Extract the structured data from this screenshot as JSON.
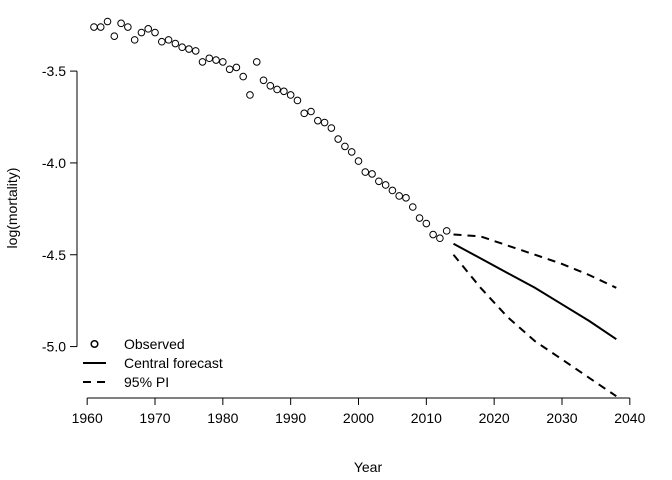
{
  "chart_data": {
    "type": "line",
    "xlabel": "Year",
    "ylabel": "log(mortality)",
    "xlim": [
      1958.5,
      2041.5
    ],
    "ylim": [
      -5.28,
      -3.2
    ],
    "xticks": [
      "1960",
      "1970",
      "1980",
      "1990",
      "2000",
      "2010",
      "2020",
      "2030",
      "2040"
    ],
    "yticks": [
      "-3.5",
      "-4.0",
      "-4.5",
      "-5.0"
    ],
    "legend_position": "bottom-left",
    "grid": false,
    "series": [
      {
        "name": "Observed",
        "style": "points",
        "x": [
          1961,
          1962,
          1963,
          1964,
          1965,
          1966,
          1967,
          1968,
          1969,
          1970,
          1971,
          1972,
          1973,
          1974,
          1975,
          1976,
          1977,
          1978,
          1979,
          1980,
          1981,
          1982,
          1983,
          1984,
          1985,
          1986,
          1987,
          1988,
          1989,
          1990,
          1991,
          1992,
          1993,
          1994,
          1995,
          1996,
          1997,
          1998,
          1999,
          2000,
          2001,
          2002,
          2003,
          2004,
          2005,
          2006,
          2007,
          2008,
          2009,
          2010,
          2011,
          2012,
          2013
        ],
        "y": [
          -3.26,
          -3.26,
          -3.23,
          -3.31,
          -3.24,
          -3.26,
          -3.33,
          -3.29,
          -3.27,
          -3.29,
          -3.34,
          -3.33,
          -3.35,
          -3.37,
          -3.38,
          -3.39,
          -3.45,
          -3.43,
          -3.44,
          -3.45,
          -3.49,
          -3.48,
          -3.53,
          -3.63,
          -3.45,
          -3.55,
          -3.58,
          -3.6,
          -3.61,
          -3.63,
          -3.66,
          -3.73,
          -3.72,
          -3.77,
          -3.78,
          -3.81,
          -3.87,
          -3.91,
          -3.94,
          -3.99,
          -4.05,
          -4.06,
          -4.1,
          -4.12,
          -4.15,
          -4.18,
          -4.19,
          -4.24,
          -4.3,
          -4.33,
          -4.39,
          -4.41,
          -4.37
        ]
      },
      {
        "name": "Central forecast",
        "style": "solid",
        "x": [
          2014,
          2018,
          2022,
          2026,
          2030,
          2034,
          2038
        ],
        "y": [
          -4.44,
          -4.52,
          -4.6,
          -4.68,
          -4.77,
          -4.86,
          -4.96
        ]
      },
      {
        "name": "95% PI",
        "style": "dashed",
        "x": [
          2014,
          2018,
          2022,
          2026,
          2030,
          2034,
          2038
        ],
        "y": [
          -4.39,
          -4.4,
          -4.45,
          -4.5,
          -4.55,
          -4.61,
          -4.68
        ]
      },
      {
        "name": "95% PI",
        "style": "dashed",
        "show_in_legend": false,
        "x": [
          2014,
          2018,
          2022,
          2026,
          2030,
          2034,
          2038
        ],
        "y": [
          -4.5,
          -4.68,
          -4.84,
          -4.97,
          -5.07,
          -5.17,
          -5.27
        ]
      }
    ]
  }
}
